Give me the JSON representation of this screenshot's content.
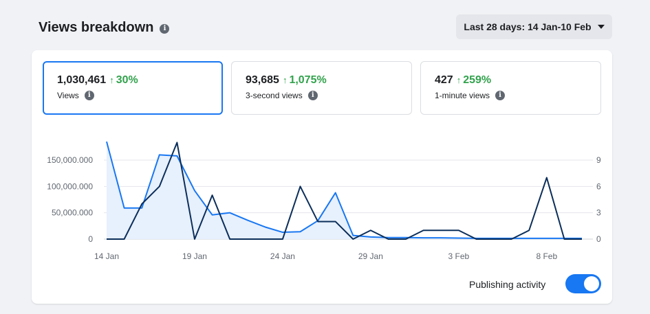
{
  "header": {
    "title": "Views breakdown",
    "info_icon": "info-icon",
    "date_range_label": "Last 28 days: 14 Jan-10 Feb"
  },
  "metrics": [
    {
      "value": "1,030,461",
      "change": "30%",
      "label": "Views",
      "selected": true
    },
    {
      "value": "93,685",
      "change": "1,075%",
      "label": "3-second views",
      "selected": false
    },
    {
      "value": "427",
      "change": "259%",
      "label": "1-minute views",
      "selected": false
    }
  ],
  "colors": {
    "views_line": "#1877f2",
    "views_fill": "#e7f0fd",
    "publishing_line": "#0b2e5a",
    "positive": "#31a24c",
    "toggle": "#1877f2"
  },
  "chart_data": {
    "type": "line",
    "x_tick_labels": [
      "14 Jan",
      "19 Jan",
      "24 Jan",
      "29 Jan",
      "3 Feb",
      "8 Feb"
    ],
    "x": [
      "14 Jan",
      "15 Jan",
      "16 Jan",
      "17 Jan",
      "18 Jan",
      "19 Jan",
      "20 Jan",
      "21 Jan",
      "22 Jan",
      "23 Jan",
      "24 Jan",
      "25 Jan",
      "26 Jan",
      "27 Jan",
      "28 Jan",
      "29 Jan",
      "30 Jan",
      "31 Jan",
      "1 Feb",
      "2 Feb",
      "3 Feb",
      "4 Feb",
      "5 Feb",
      "6 Feb",
      "7 Feb",
      "8 Feb",
      "9 Feb",
      "10 Feb"
    ],
    "left_axis": {
      "ticks": [
        0,
        50000,
        100000,
        150000
      ],
      "tick_labels": [
        "0",
        "50,000.000",
        "100,000.000",
        "150,000.000"
      ],
      "ylim": [
        0,
        150000
      ]
    },
    "right_axis": {
      "ticks": [
        0,
        3,
        6,
        9
      ],
      "tick_labels": [
        "0",
        "3",
        "6",
        "9"
      ],
      "ylim": [
        0,
        9
      ]
    },
    "series": [
      {
        "key": "views",
        "axis": "left",
        "area": true,
        "values": [
          185000,
          59000,
          59000,
          160000,
          158000,
          92000,
          46000,
          50000,
          36000,
          23000,
          13000,
          14000,
          35000,
          88000,
          7000,
          4000,
          3000,
          3000,
          2500,
          2500,
          2000,
          1500,
          1500,
          1500,
          1500,
          1500,
          1500,
          1500
        ]
      },
      {
        "key": "publishing_activity",
        "axis": "right",
        "area": false,
        "values": [
          0,
          0,
          4,
          6,
          11,
          0,
          5,
          0,
          0,
          0,
          0,
          6,
          2,
          2,
          0,
          1,
          0,
          0,
          1,
          1,
          1,
          0,
          0,
          0,
          1,
          7,
          0,
          0
        ]
      }
    ],
    "grid": true
  },
  "footer": {
    "publishing_label": "Publishing activity",
    "publishing_enabled": true
  }
}
